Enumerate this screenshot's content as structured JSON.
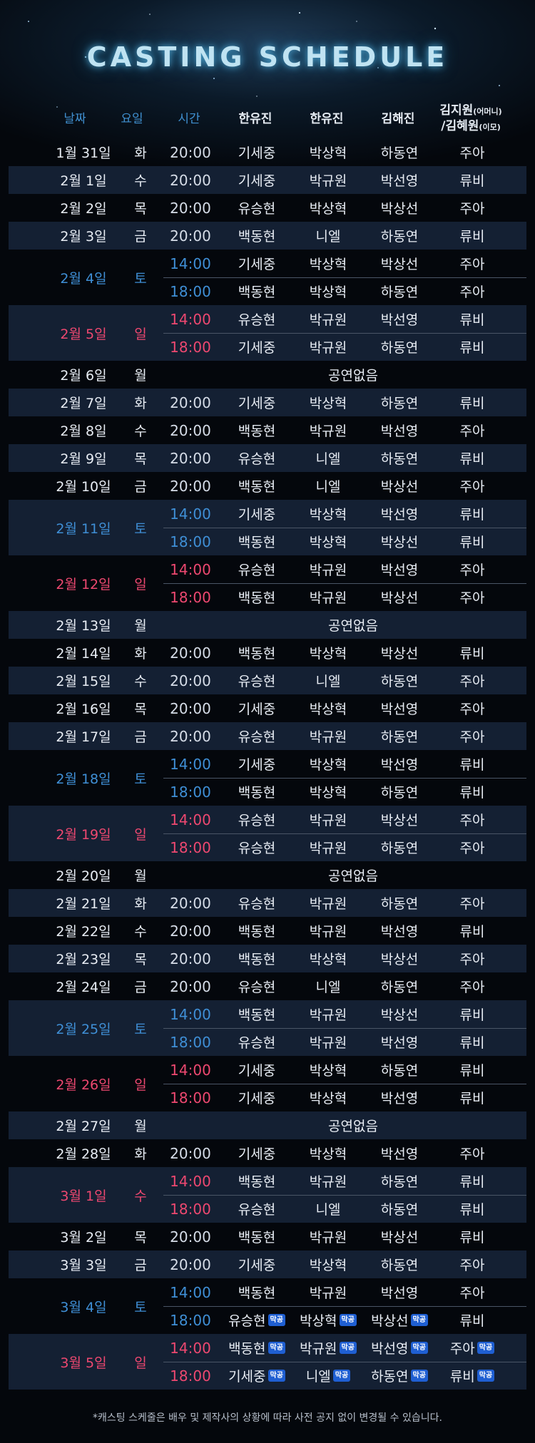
{
  "title": "CASTING SCHEDULE",
  "header": {
    "date": "날짜",
    "day": "요일",
    "time": "시간",
    "actor1": "한유진",
    "actor2": "한유진",
    "actor3": "김해진",
    "actor4_line1": "김지원",
    "actor4_line1_note": "(어머니)",
    "actor4_line2": "/김혜원",
    "actor4_line2_note": "(이모)"
  },
  "badge_label": "막공",
  "no_show": "공연없음",
  "footnote": "*캐스팅 스케줄은 배우 및 제작사의 상황에 따라 사전 공지 없이 변경될 수 있습니다.",
  "colors": {
    "saturday": "#3f8fd6",
    "sunday": "#ee4870",
    "badge": "#1f5fd2",
    "title_glow": "#4fa7d3"
  },
  "schedule": [
    {
      "date": "1월 31일",
      "day": "화",
      "type": "weekday",
      "shows": [
        {
          "time": "20:00",
          "cast": [
            "기세중",
            "박상혁",
            "하동연",
            "주아"
          ]
        }
      ]
    },
    {
      "date": "2월 1일",
      "day": "수",
      "type": "weekday",
      "shows": [
        {
          "time": "20:00",
          "cast": [
            "기세중",
            "박규원",
            "박선영",
            "류비"
          ]
        }
      ]
    },
    {
      "date": "2월 2일",
      "day": "목",
      "type": "weekday",
      "shows": [
        {
          "time": "20:00",
          "cast": [
            "유승현",
            "박상혁",
            "박상선",
            "주아"
          ]
        }
      ]
    },
    {
      "date": "2월 3일",
      "day": "금",
      "type": "weekday",
      "shows": [
        {
          "time": "20:00",
          "cast": [
            "백동현",
            "니엘",
            "하동연",
            "류비"
          ]
        }
      ]
    },
    {
      "date": "2월 4일",
      "day": "토",
      "type": "sat",
      "shows": [
        {
          "time": "14:00",
          "cast": [
            "기세중",
            "박상혁",
            "박상선",
            "주아"
          ]
        },
        {
          "time": "18:00",
          "cast": [
            "백동현",
            "박상혁",
            "하동연",
            "주아"
          ]
        }
      ]
    },
    {
      "date": "2월 5일",
      "day": "일",
      "type": "sun",
      "shows": [
        {
          "time": "14:00",
          "cast": [
            "유승현",
            "박규원",
            "박선영",
            "류비"
          ]
        },
        {
          "time": "18:00",
          "cast": [
            "기세중",
            "박규원",
            "하동연",
            "류비"
          ]
        }
      ]
    },
    {
      "date": "2월 6일",
      "day": "월",
      "type": "weekday",
      "noShow": true
    },
    {
      "date": "2월 7일",
      "day": "화",
      "type": "weekday",
      "shows": [
        {
          "time": "20:00",
          "cast": [
            "기세중",
            "박상혁",
            "하동연",
            "류비"
          ]
        }
      ]
    },
    {
      "date": "2월 8일",
      "day": "수",
      "type": "weekday",
      "shows": [
        {
          "time": "20:00",
          "cast": [
            "백동현",
            "박규원",
            "박선영",
            "주아"
          ]
        }
      ]
    },
    {
      "date": "2월 9일",
      "day": "목",
      "type": "weekday",
      "shows": [
        {
          "time": "20:00",
          "cast": [
            "유승현",
            "니엘",
            "하동연",
            "류비"
          ]
        }
      ]
    },
    {
      "date": "2월 10일",
      "day": "금",
      "type": "weekday",
      "shows": [
        {
          "time": "20:00",
          "cast": [
            "백동현",
            "니엘",
            "박상선",
            "주아"
          ]
        }
      ]
    },
    {
      "date": "2월 11일",
      "day": "토",
      "type": "sat",
      "shows": [
        {
          "time": "14:00",
          "cast": [
            "기세중",
            "박상혁",
            "박선영",
            "류비"
          ]
        },
        {
          "time": "18:00",
          "cast": [
            "백동현",
            "박상혁",
            "박상선",
            "류비"
          ]
        }
      ]
    },
    {
      "date": "2월 12일",
      "day": "일",
      "type": "sun",
      "shows": [
        {
          "time": "14:00",
          "cast": [
            "유승현",
            "박규원",
            "박선영",
            "주아"
          ]
        },
        {
          "time": "18:00",
          "cast": [
            "백동현",
            "박규원",
            "박상선",
            "주아"
          ]
        }
      ]
    },
    {
      "date": "2월 13일",
      "day": "월",
      "type": "weekday",
      "noShow": true
    },
    {
      "date": "2월 14일",
      "day": "화",
      "type": "weekday",
      "shows": [
        {
          "time": "20:00",
          "cast": [
            "백동현",
            "박상혁",
            "박상선",
            "류비"
          ]
        }
      ]
    },
    {
      "date": "2월 15일",
      "day": "수",
      "type": "weekday",
      "shows": [
        {
          "time": "20:00",
          "cast": [
            "유승현",
            "니엘",
            "하동연",
            "주아"
          ]
        }
      ]
    },
    {
      "date": "2월 16일",
      "day": "목",
      "type": "weekday",
      "shows": [
        {
          "time": "20:00",
          "cast": [
            "기세중",
            "박상혁",
            "박선영",
            "주아"
          ]
        }
      ]
    },
    {
      "date": "2월 17일",
      "day": "금",
      "type": "weekday",
      "shows": [
        {
          "time": "20:00",
          "cast": [
            "유승현",
            "박규원",
            "하동연",
            "주아"
          ]
        }
      ]
    },
    {
      "date": "2월 18일",
      "day": "토",
      "type": "sat",
      "shows": [
        {
          "time": "14:00",
          "cast": [
            "기세중",
            "박상혁",
            "박선영",
            "류비"
          ]
        },
        {
          "time": "18:00",
          "cast": [
            "백동현",
            "박상혁",
            "하동연",
            "류비"
          ]
        }
      ]
    },
    {
      "date": "2월 19일",
      "day": "일",
      "type": "sun",
      "shows": [
        {
          "time": "14:00",
          "cast": [
            "유승현",
            "박규원",
            "박상선",
            "주아"
          ]
        },
        {
          "time": "18:00",
          "cast": [
            "유승현",
            "박규원",
            "하동연",
            "주아"
          ]
        }
      ]
    },
    {
      "date": "2월 20일",
      "day": "월",
      "type": "weekday",
      "noShow": true
    },
    {
      "date": "2월 21일",
      "day": "화",
      "type": "weekday",
      "shows": [
        {
          "time": "20:00",
          "cast": [
            "유승현",
            "박규원",
            "하동연",
            "주아"
          ]
        }
      ]
    },
    {
      "date": "2월 22일",
      "day": "수",
      "type": "weekday",
      "shows": [
        {
          "time": "20:00",
          "cast": [
            "백동현",
            "박규원",
            "박선영",
            "류비"
          ]
        }
      ]
    },
    {
      "date": "2월 23일",
      "day": "목",
      "type": "weekday",
      "shows": [
        {
          "time": "20:00",
          "cast": [
            "백동현",
            "박상혁",
            "박상선",
            "주아"
          ]
        }
      ]
    },
    {
      "date": "2월 24일",
      "day": "금",
      "type": "weekday",
      "shows": [
        {
          "time": "20:00",
          "cast": [
            "유승현",
            "니엘",
            "하동연",
            "주아"
          ]
        }
      ]
    },
    {
      "date": "2월 25일",
      "day": "토",
      "type": "sat",
      "shows": [
        {
          "time": "14:00",
          "cast": [
            "백동현",
            "박규원",
            "박상선",
            "류비"
          ]
        },
        {
          "time": "18:00",
          "cast": [
            "유승현",
            "박규원",
            "박선영",
            "류비"
          ]
        }
      ]
    },
    {
      "date": "2월 26일",
      "day": "일",
      "type": "sun",
      "shows": [
        {
          "time": "14:00",
          "cast": [
            "기세중",
            "박상혁",
            "하동연",
            "류비"
          ]
        },
        {
          "time": "18:00",
          "cast": [
            "기세중",
            "박상혁",
            "박선영",
            "류비"
          ]
        }
      ]
    },
    {
      "date": "2월 27일",
      "day": "월",
      "type": "weekday",
      "noShow": true
    },
    {
      "date": "2월 28일",
      "day": "화",
      "type": "weekday",
      "shows": [
        {
          "time": "20:00",
          "cast": [
            "기세중",
            "박상혁",
            "박선영",
            "주아"
          ]
        }
      ]
    },
    {
      "date": "3월 1일",
      "day": "수",
      "type": "sun",
      "shows": [
        {
          "time": "14:00",
          "cast": [
            "백동현",
            "박규원",
            "하동연",
            "류비"
          ]
        },
        {
          "time": "18:00",
          "cast": [
            "유승현",
            "니엘",
            "하동연",
            "류비"
          ]
        }
      ]
    },
    {
      "date": "3월 2일",
      "day": "목",
      "type": "weekday",
      "shows": [
        {
          "time": "20:00",
          "cast": [
            "백동현",
            "박규원",
            "박상선",
            "류비"
          ]
        }
      ]
    },
    {
      "date": "3월 3일",
      "day": "금",
      "type": "weekday",
      "shows": [
        {
          "time": "20:00",
          "cast": [
            "기세중",
            "박상혁",
            "하동연",
            "주아"
          ]
        }
      ]
    },
    {
      "date": "3월 4일",
      "day": "토",
      "type": "sat",
      "shows": [
        {
          "time": "14:00",
          "cast": [
            "백동현",
            "박규원",
            "박선영",
            "주아"
          ]
        },
        {
          "time": "18:00",
          "cast": [
            "유승현",
            "박상혁",
            "박상선",
            "류비"
          ],
          "badges": [
            true,
            true,
            true,
            false
          ]
        }
      ]
    },
    {
      "date": "3월 5일",
      "day": "일",
      "type": "sun",
      "shows": [
        {
          "time": "14:00",
          "cast": [
            "백동현",
            "박규원",
            "박선영",
            "주아"
          ],
          "badges": [
            true,
            true,
            true,
            true
          ]
        },
        {
          "time": "18:00",
          "cast": [
            "기세중",
            "니엘",
            "하동연",
            "류비"
          ],
          "badges": [
            true,
            true,
            true,
            true
          ]
        }
      ]
    }
  ]
}
